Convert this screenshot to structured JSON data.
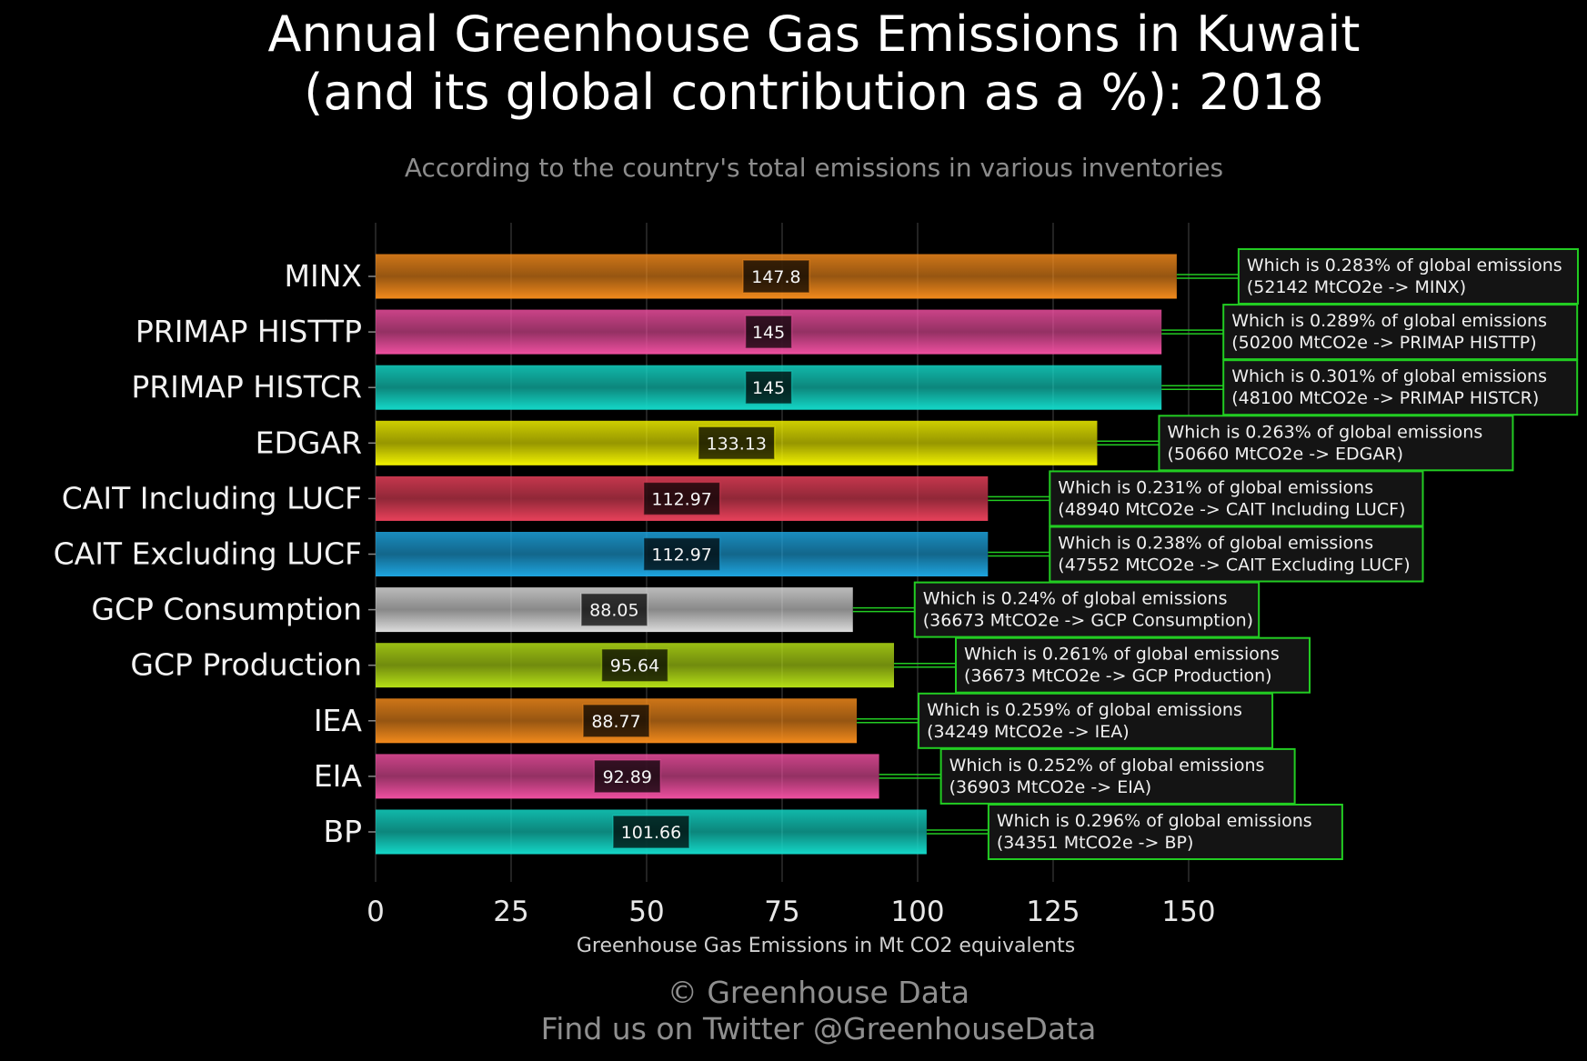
{
  "title_line1": "Annual Greenhouse Gas Emissions in Kuwait",
  "title_line2": "(and its global contribution as a %): 2018",
  "subtitle": "According to the country's total emissions in various inventories",
  "footer_line1": "© Greenhouse Data",
  "footer_line2": "Find us on Twitter @GreenhouseData",
  "chart_data": {
    "type": "bar",
    "orientation": "horizontal",
    "xlabel": "Greenhouse Gas Emissions in Mt CO2 equivalents",
    "ylabel": "",
    "xlim": [
      0,
      172
    ],
    "xticks": [
      0,
      25,
      50,
      75,
      100,
      125,
      150
    ],
    "grid": true,
    "categories": [
      "MINX",
      "PRIMAP HISTTP",
      "PRIMAP HISTCR",
      "EDGAR",
      "CAIT Including LUCF",
      "CAIT Excluding LUCF",
      "GCP Consumption",
      "GCP Production",
      "IEA",
      "EIA",
      "BP"
    ],
    "values": [
      147.8,
      145,
      145,
      133.13,
      112.97,
      112.97,
      88.05,
      95.64,
      88.77,
      92.89,
      101.66
    ],
    "value_labels": [
      "147.8",
      "145",
      "145",
      "133.13",
      "112.97",
      "112.97",
      "88.05",
      "95.64",
      "88.77",
      "92.89",
      "101.66"
    ],
    "colors": [
      "#f28a1c",
      "#ee4fa0",
      "#14d8c8",
      "#f2f200",
      "#e8405a",
      "#1ea5e0",
      "#dcdcdc",
      "#b6e016",
      "#f28a1c",
      "#ee4fa0",
      "#14d8c8"
    ],
    "annotations": [
      {
        "line1": "Which is 0.283% of global emissions",
        "line2": "(52142 MtCO2e -> MINX)"
      },
      {
        "line1": "Which is 0.289% of global emissions",
        "line2": "(50200 MtCO2e -> PRIMAP HISTTP)"
      },
      {
        "line1": "Which is 0.301% of global emissions",
        "line2": "(48100 MtCO2e -> PRIMAP HISTCR)"
      },
      {
        "line1": "Which is 0.263% of global emissions",
        "line2": "(50660 MtCO2e -> EDGAR)"
      },
      {
        "line1": "Which is 0.231% of global emissions",
        "line2": "(48940 MtCO2e -> CAIT Including LUCF)"
      },
      {
        "line1": "Which is 0.238% of global emissions",
        "line2": "(47552 MtCO2e -> CAIT Excluding LUCF)"
      },
      {
        "line1": "Which is 0.24% of global emissions",
        "line2": "(36673 MtCO2e -> GCP Consumption)"
      },
      {
        "line1": "Which is 0.261% of global emissions",
        "line2": "(36673 MtCO2e -> GCP Production)"
      },
      {
        "line1": "Which is 0.259% of global emissions",
        "line2": "(34249 MtCO2e -> IEA)"
      },
      {
        "line1": "Which is 0.252% of global emissions",
        "line2": "(36903 MtCO2e -> EIA)"
      },
      {
        "line1": "Which is 0.296% of global emissions",
        "line2": "(34351 MtCO2e -> BP)"
      }
    ],
    "annotation_border_color": "#22cc22"
  }
}
